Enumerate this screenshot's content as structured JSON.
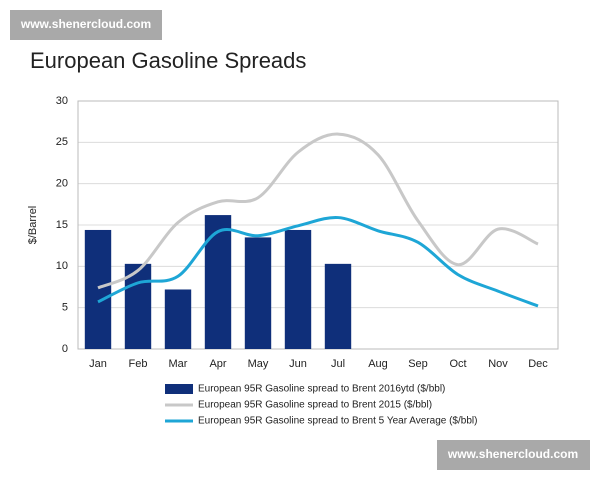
{
  "watermarks": [
    "www.shenercloud.com",
    "www.shenercloud.com"
  ],
  "chart_data": {
    "type": "bar",
    "title": "European Gasoline Spreads",
    "y_label": "$/Barrel",
    "categories": [
      "Jan",
      "Feb",
      "Mar",
      "Apr",
      "May",
      "Jun",
      "Jul",
      "Aug",
      "Sep",
      "Oct",
      "Nov",
      "Dec"
    ],
    "series": [
      {
        "name": "European 95R Gasoline spread to Brent 2016ytd ($/bbl)",
        "type": "bar",
        "color": "#0f2f7a",
        "values": [
          14.4,
          10.3,
          7.2,
          16.2,
          13.5,
          14.4,
          10.3,
          null,
          null,
          null,
          null,
          null
        ]
      },
      {
        "name": "European 95R Gasoline spread to Brent 2015 ($/bbl)",
        "type": "line",
        "color": "#c8c8c8",
        "values": [
          7.4,
          9.5,
          15.3,
          17.8,
          18.3,
          23.8,
          26,
          23.5,
          15.5,
          10.2,
          14.5,
          12.7
        ]
      },
      {
        "name": "European 95R Gasoline spread to Brent 5 Year Average ($/bbl)",
        "type": "line",
        "color": "#1ea6d6",
        "values": [
          5.7,
          8.0,
          8.8,
          14.2,
          13.7,
          14.9,
          15.9,
          14.3,
          12.9,
          9.0,
          7.0,
          5.2
        ]
      }
    ],
    "ylim": [
      0,
      30
    ],
    "yticks": [
      0,
      5,
      10,
      15,
      20,
      25,
      30
    ],
    "grid": true,
    "legend": "bottom"
  }
}
